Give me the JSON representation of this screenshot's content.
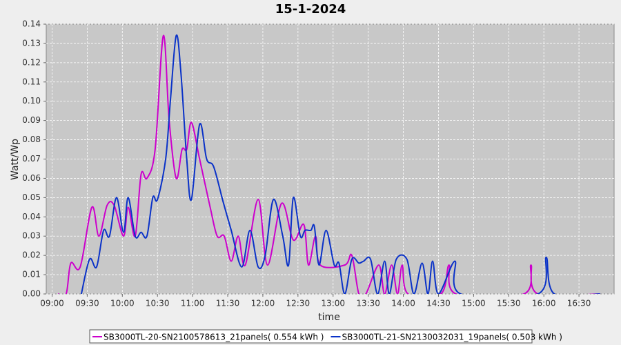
{
  "chart_data": {
    "type": "line",
    "title": "15-1-2024",
    "x_label": "time",
    "y_label": "Watt/Wp",
    "xlim": [
      "08:55",
      "17:00"
    ],
    "xticks": [
      "09:00",
      "09:30",
      "10:00",
      "10:30",
      "11:00",
      "11:30",
      "12:00",
      "12:30",
      "13:00",
      "13:30",
      "14:00",
      "14:30",
      "15:00",
      "15:30",
      "16:00",
      "16:30"
    ],
    "ylim": [
      0,
      0.14
    ],
    "yticks": [
      {
        "value": 0,
        "label": "0.00"
      },
      0.01,
      0.02,
      0.03,
      0.04,
      0.05,
      0.06,
      0.07,
      0.08,
      0.09,
      {
        "value": 0.1,
        "label": "0.10"
      },
      0.11,
      0.12,
      0.13,
      0.14
    ],
    "grid": true,
    "series": [
      {
        "name": "SB3000TL-20-SN2100578613_21panels( 0.554 kWh )",
        "color": "#cc00cc",
        "x": [
          "09:05",
          "09:12",
          "09:16",
          "09:24",
          "09:34",
          "09:40",
          "09:47",
          "09:53",
          "10:01",
          "10:05",
          "10:11",
          "10:16",
          "10:21",
          "10:28",
          "10:35",
          "10:40",
          "10:46",
          "10:51",
          "10:55",
          "10:59",
          "11:06",
          "11:15",
          "11:21",
          "11:27",
          "11:33",
          "11:39",
          "11:45",
          "11:56",
          "12:04",
          "12:16",
          "12:26",
          "12:35",
          "12:39",
          "12:45",
          "12:49",
          "13:10",
          "13:16",
          "13:22",
          "13:28",
          "13:39",
          "13:44",
          "13:50",
          "13:55",
          "13:59",
          "14:04",
          "14:32",
          "14:39",
          "14:45",
          "15:43",
          "15:49",
          "15:55",
          "16:48"
        ],
        "values": [
          0,
          0,
          0.016,
          0.014,
          0.045,
          0.03,
          0.046,
          0.046,
          0.03,
          0.045,
          0.03,
          0.062,
          0.06,
          0.075,
          0.134,
          0.09,
          0.06,
          0.075,
          0.075,
          0.089,
          0.07,
          0.045,
          0.03,
          0.03,
          0.017,
          0.03,
          0.015,
          0.049,
          0.015,
          0.047,
          0.028,
          0.036,
          0.015,
          0.03,
          0.015,
          0.015,
          0.02,
          0,
          0,
          0.015,
          0,
          0.015,
          0,
          0.015,
          0,
          0,
          0.015,
          0,
          0,
          0.015,
          0,
          0
        ]
      },
      {
        "name": "SB3000TL-21-SN2130032031_19panels( 0.503 kWh )",
        "color": "#0a32c8",
        "x": [
          "09:25",
          "09:32",
          "09:38",
          "09:44",
          "09:49",
          "09:55",
          "10:01",
          "10:05",
          "10:11",
          "10:16",
          "10:21",
          "10:26",
          "10:30",
          "10:37",
          "10:41",
          "10:46",
          "10:50",
          "10:55",
          "10:59",
          "11:06",
          "11:12",
          "11:18",
          "11:26",
          "11:33",
          "11:42",
          "11:49",
          "11:56",
          "12:02",
          "12:09",
          "12:17",
          "12:22",
          "12:26",
          "12:32",
          "12:36",
          "12:41",
          "12:44",
          "12:48",
          "12:54",
          "13:01",
          "13:05",
          "13:10",
          "13:16",
          "13:22",
          "13:26",
          "13:32",
          "13:38",
          "13:44",
          "13:48",
          "13:54",
          "14:03",
          "14:09",
          "14:16",
          "14:21",
          "14:25",
          "14:30",
          "14:44",
          "14:49",
          "15:55",
          "16:02",
          "16:09",
          "16:48"
        ],
        "values": [
          0,
          0.018,
          0.014,
          0.033,
          0.03,
          0.05,
          0.032,
          0.05,
          0.03,
          0.032,
          0.03,
          0.05,
          0.049,
          0.07,
          0.1,
          0.134,
          0.115,
          0.07,
          0.049,
          0.088,
          0.07,
          0.066,
          0.048,
          0.033,
          0.014,
          0.033,
          0.014,
          0.02,
          0.049,
          0.03,
          0.015,
          0.05,
          0.03,
          0.033,
          0.033,
          0.035,
          0.015,
          0.033,
          0.015,
          0.016,
          0,
          0.018,
          0.016,
          0.017,
          0.018,
          0,
          0.017,
          0,
          0.018,
          0.018,
          0,
          0.016,
          0,
          0.017,
          0,
          0.017,
          0,
          0,
          0.019,
          0,
          0
        ]
      }
    ]
  }
}
